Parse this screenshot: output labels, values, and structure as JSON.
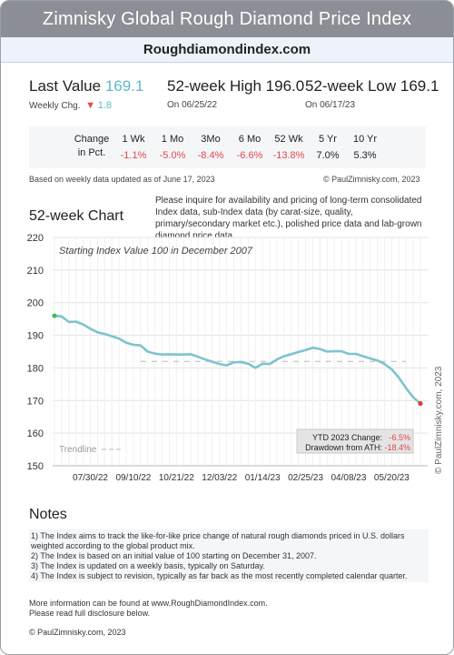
{
  "header": {
    "title": "Zimnisky Global Rough Diamond Price Index",
    "site": "Roughdiamondindex.com"
  },
  "stats": {
    "last_label": "Last Value",
    "last_value": "169.1",
    "weekly_label": "Weekly Chg.",
    "weekly_value": "1.8",
    "high_label": "52-week High 196.0",
    "high_date": "On 06/25/22",
    "low_label": "52-week Low 169.1",
    "low_date": "On 06/17/23"
  },
  "changes": {
    "label_line1": "Change",
    "label_line2": "in Pct.",
    "periods": [
      {
        "label": "1 Wk",
        "value": "-1.1%",
        "negative": true
      },
      {
        "label": "1 Mo",
        "value": "-5.0%",
        "negative": true
      },
      {
        "label": "3Mo",
        "value": "-8.4%",
        "negative": true
      },
      {
        "label": "6 Mo",
        "value": "-6.6%",
        "negative": true
      },
      {
        "label": "52 Wk",
        "value": "-13.8%",
        "negative": true
      },
      {
        "label": "5 Yr",
        "value": "7.0%",
        "negative": false
      },
      {
        "label": "10 Yr",
        "value": "5.3%",
        "negative": false
      }
    ]
  },
  "based_on": "Based on weekly data updated as of June 17, 2023",
  "copyright_top": "© PaulZimnisky.com, 2023",
  "inquiry": "Please inquire for availability and pricing of long-term consolidated Index data, sub-Index data (by carat-size, quality, primary/secondary market etc.), polished price data and lab-grown diamond price data.",
  "chart_data": {
    "type": "line",
    "title": "52-week Chart",
    "subtitle": "Starting Index Value 100 in December 2007",
    "ylim": [
      150,
      220
    ],
    "yticks": [
      150,
      160,
      170,
      180,
      190,
      200,
      210,
      220
    ],
    "x_tick_labels": [
      "07/30/22",
      "09/10/22",
      "10/21/22",
      "12/03/22",
      "01/14/23",
      "02/25/23",
      "04/08/23",
      "05/20/23"
    ],
    "x_tick_weeks": [
      5,
      11,
      17,
      23,
      29,
      35,
      41,
      47
    ],
    "grid": true,
    "legend": "bottom-left",
    "legend_label": "Trendline",
    "trendline": 182,
    "series": [
      {
        "weeks": [
          0,
          1,
          2,
          3,
          4,
          5,
          6,
          7,
          8,
          9,
          10,
          11,
          12,
          13,
          14,
          15,
          16,
          17,
          18,
          19,
          20,
          21,
          22,
          23,
          24,
          25,
          26,
          27,
          28,
          29,
          30,
          31,
          32,
          33,
          34,
          35,
          36,
          37,
          38,
          39,
          40,
          41,
          42,
          43,
          44,
          45,
          46,
          47,
          48,
          49,
          50,
          51
        ],
        "values": [
          196.0,
          195.8,
          194.1,
          194.2,
          193.3,
          192.0,
          190.9,
          190.4,
          189.7,
          189.0,
          187.7,
          187.1,
          186.9,
          185.0,
          184.4,
          184.1,
          184.2,
          184.1,
          184.1,
          184.2,
          183.4,
          182.6,
          181.9,
          181.2,
          180.8,
          181.7,
          181.8,
          181.3,
          180.0,
          181.3,
          181.2,
          182.6,
          183.6,
          184.2,
          184.9,
          185.5,
          186.2,
          185.8,
          185.0,
          185.1,
          185.1,
          184.3,
          184.3,
          183.6,
          182.9,
          182.3,
          181.2,
          179.6,
          177.0,
          173.8,
          171.0,
          169.1
        ]
      }
    ],
    "annotations": [
      {
        "label": "YTD 2023 Change:",
        "value": "-6.5%"
      },
      {
        "label": "Drawdown from ATH:",
        "value": "-18.4%"
      }
    ],
    "watermark": "© PaulZimnisky.com, 2023",
    "colors": {
      "line": "#7ec3cf",
      "start": "#3fbf4f",
      "end": "#e03a3a",
      "trend": "#b9b9b9"
    }
  },
  "notes": {
    "title": "Notes",
    "items": [
      "1) The Index aims to track the like-for-like price change of natural rough diamonds priced in U.S. dollars weighted according to the global product mix.",
      "2) The Index is based on an initial value of 100 starting on December 31, 2007.",
      "3) The Index is updated on a weekly basis, typically on Saturday.",
      "4)  The Index is subject to revision, typically as far back as the most recently completed calendar quarter."
    ]
  },
  "more_info": [
    "More information can be found at www.RoughDiamondIndex.com.",
    "Please read full disclosure below."
  ],
  "footer": "© PaulZimnisky.com, 2023"
}
